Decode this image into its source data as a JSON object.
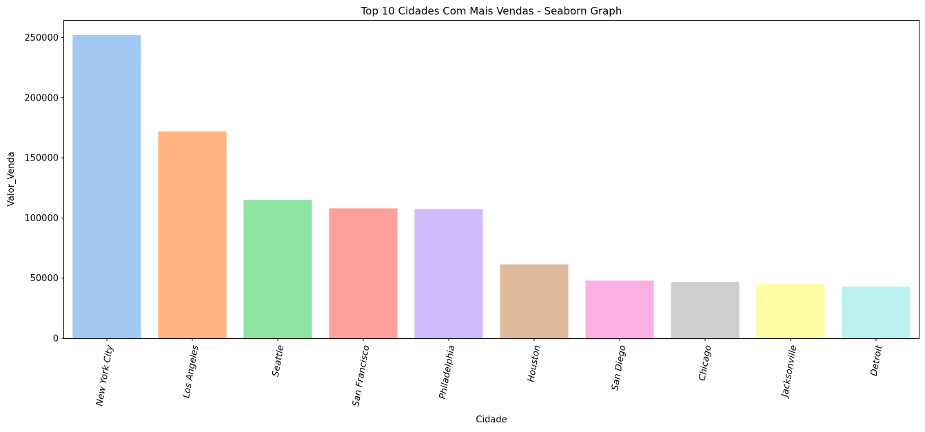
{
  "chart_data": {
    "type": "bar",
    "title": "Top 10 Cidades Com Mais Vendas  - Seaborn Graph",
    "xlabel": "Cidade",
    "ylabel": "Valor_Venda",
    "categories": [
      "New York City",
      "Los Angeles",
      "Seattle",
      "San Francisco",
      "Philadelphia",
      "Houston",
      "San Diego",
      "Chicago",
      "Jacksonville",
      "Detroit"
    ],
    "values": [
      252000,
      172000,
      115000,
      108000,
      107500,
      61500,
      48000,
      47000,
      45000,
      43000
    ],
    "colors": [
      "#a1c9f4",
      "#ffb482",
      "#8de5a1",
      "#ff9f9b",
      "#d0bbff",
      "#debb9b",
      "#fab0e4",
      "#cfcfcf",
      "#fffea3",
      "#b9f2f0"
    ],
    "yticks": [
      "0",
      "50000",
      "100000",
      "150000",
      "200000",
      "250000"
    ],
    "ylim": [
      0,
      264000
    ],
    "grid": false,
    "legend": "none"
  }
}
